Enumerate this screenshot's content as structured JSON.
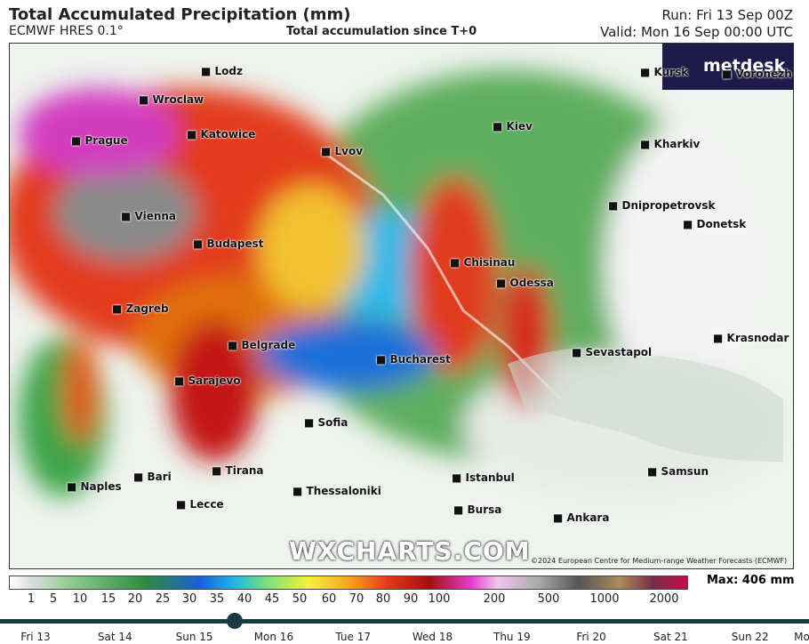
{
  "header": {
    "title": "Total Accumulated Precipitation (mm)",
    "model": "ECMWF HRES 0.1°",
    "subtitle": "Total accumulation since T+0",
    "run": "Run: Fri 13 Sep 00Z",
    "valid": "Valid: Mon 16 Sep 00:00 UTC"
  },
  "logo": "metdesk",
  "cities": [
    "Lodz",
    "Wroclaw",
    "Prague",
    "Katowice",
    "Kiev",
    "Kursk",
    "Voronezh",
    "Lvov",
    "Kharkiv",
    "Vienna",
    "Dnipropetrovsk",
    "Donetsk",
    "Budapest",
    "Chisinau",
    "Odessa",
    "Zagreb",
    "Belgrade",
    "Krasnodar",
    "Sevastapol",
    "Bucharest",
    "Sarajevo",
    "Sofia",
    "Samsun",
    "Tirana",
    "Bari",
    "Istanbul",
    "Naples",
    "Thessaloniki",
    "Lecce",
    "Bursa",
    "Ankara"
  ],
  "watermark": "WXCHARTS.COM",
  "copyright": "©2024 European Centre for Medium-range Weather Forecasts (ECMWF)",
  "legend": {
    "ticks": [
      1,
      5,
      10,
      15,
      20,
      25,
      30,
      35,
      40,
      45,
      50,
      60,
      70,
      80,
      90,
      100,
      200,
      500,
      1000,
      2000
    ],
    "max": "Max: 406 mm"
  },
  "timeline": [
    "Fri 13",
    "Sat 14",
    "Sun 15",
    "Mon 16",
    "Tue 17",
    "Wed 18",
    "Thu 19",
    "Fri 20",
    "Sat 21",
    "Sun 22",
    "Mo"
  ]
}
